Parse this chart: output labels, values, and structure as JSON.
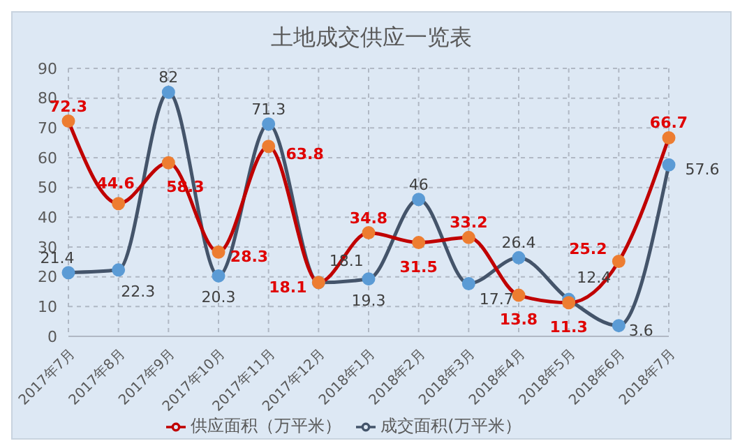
{
  "chart_data": {
    "type": "line",
    "title": "土地成交供应一览表",
    "categories": [
      "2017年7月",
      "2017年8月",
      "2017年9月",
      "2017年10月",
      "2017年11月",
      "2017年12月",
      "2018年1月",
      "2018年2月",
      "2018年3月",
      "2018年4月",
      "2018年5月",
      "2018年6月",
      "2018年7月"
    ],
    "series": [
      {
        "name": "成交面积(万平米）",
        "color": "#44546a",
        "values": [
          21.4,
          22.3,
          82,
          20.3,
          71.3,
          18.1,
          19.3,
          46,
          17.7,
          26.4,
          12.4,
          3.6,
          57.6
        ]
      },
      {
        "name": "供应面积（万平米）",
        "color": "#c00000",
        "values": [
          72.3,
          44.6,
          58.3,
          28.3,
          63.8,
          18.1,
          34.8,
          31.5,
          33.2,
          13.8,
          11.3,
          25.2,
          66.7
        ]
      }
    ],
    "ylim": [
      0,
      90
    ],
    "yticks": [
      0,
      10,
      20,
      30,
      40,
      50,
      60,
      70,
      80,
      90
    ],
    "grid": true,
    "legend": "bottom",
    "marker": "circle",
    "line_style": "solid",
    "data_labels": true
  }
}
